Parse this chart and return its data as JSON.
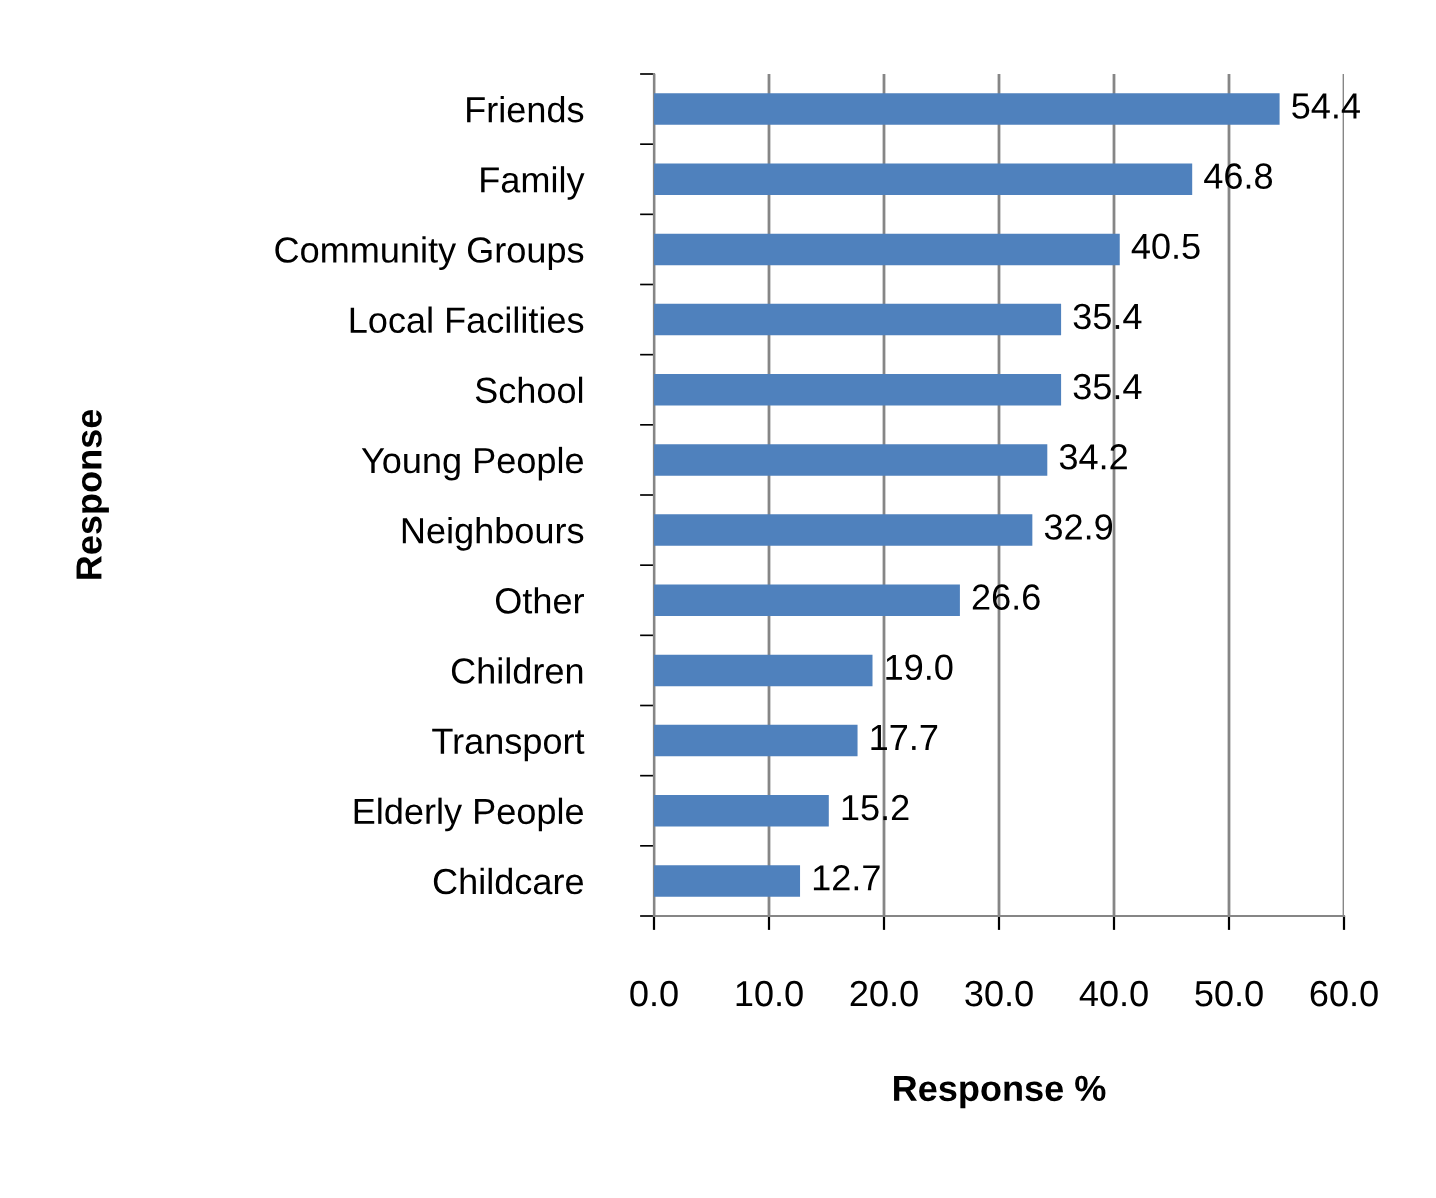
{
  "chart_data": {
    "type": "bar",
    "orientation": "horizontal",
    "categories": [
      "Friends",
      "Family",
      "Community Groups",
      "Local Facilities",
      "School",
      "Young People",
      "Neighbours",
      "Other",
      "Children",
      "Transport",
      "Elderly People",
      "Childcare"
    ],
    "values": [
      54.4,
      46.8,
      40.5,
      35.4,
      35.4,
      34.2,
      32.9,
      26.6,
      19.0,
      17.7,
      15.2,
      12.7
    ],
    "value_labels": [
      "54.4",
      "46.8",
      "40.5",
      "35.4",
      "35.4",
      "34.2",
      "32.9",
      "26.6",
      "19.0",
      "17.7",
      "15.2",
      "12.7"
    ],
    "color": "#4f81bd",
    "xlim": [
      0,
      60
    ],
    "xticks": [
      {
        "value": 0,
        "label": "0.0"
      },
      {
        "value": 10,
        "label": "10.0"
      },
      {
        "value": 20,
        "label": "20.0"
      },
      {
        "value": 30,
        "label": "30.0"
      },
      {
        "value": 40,
        "label": "40.0"
      },
      {
        "value": 50,
        "label": "50.0"
      },
      {
        "value": 60,
        "label": "60.0"
      }
    ],
    "xlabel": "Response %",
    "ylabel": "Response",
    "grid": "x",
    "legend": false
  }
}
